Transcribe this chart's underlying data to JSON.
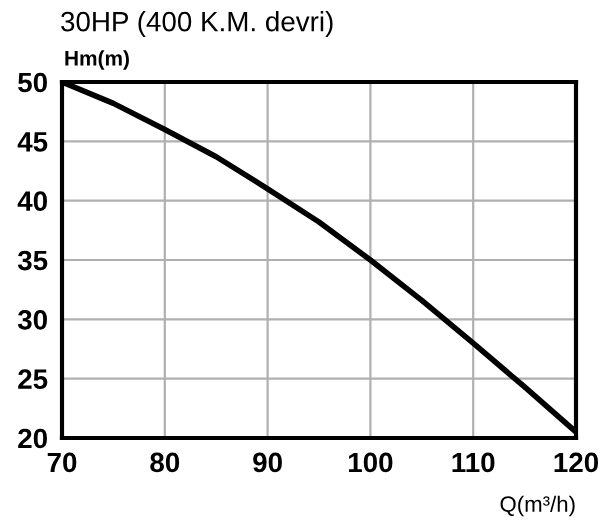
{
  "chart_data": {
    "type": "line",
    "title": "30HP (400 K.M. devri)",
    "ylabel": "Hm(m)",
    "xlabel": "Q(m³/h)",
    "x": [
      70,
      75,
      80,
      85,
      90,
      95,
      100,
      105,
      110,
      115,
      120
    ],
    "series": [
      {
        "color": "#000000",
        "values": [
          50,
          48.2,
          46,
          43.7,
          41,
          38.2,
          35,
          31.6,
          28,
          24.3,
          20.5
        ]
      }
    ],
    "xlim": [
      70,
      120
    ],
    "ylim": [
      20,
      50
    ],
    "xticks": [
      70,
      80,
      90,
      100,
      110,
      120
    ],
    "yticks": [
      20,
      25,
      30,
      35,
      40,
      45,
      50
    ],
    "grid": true,
    "legend": false,
    "marker": "none",
    "line_style": "solid"
  }
}
